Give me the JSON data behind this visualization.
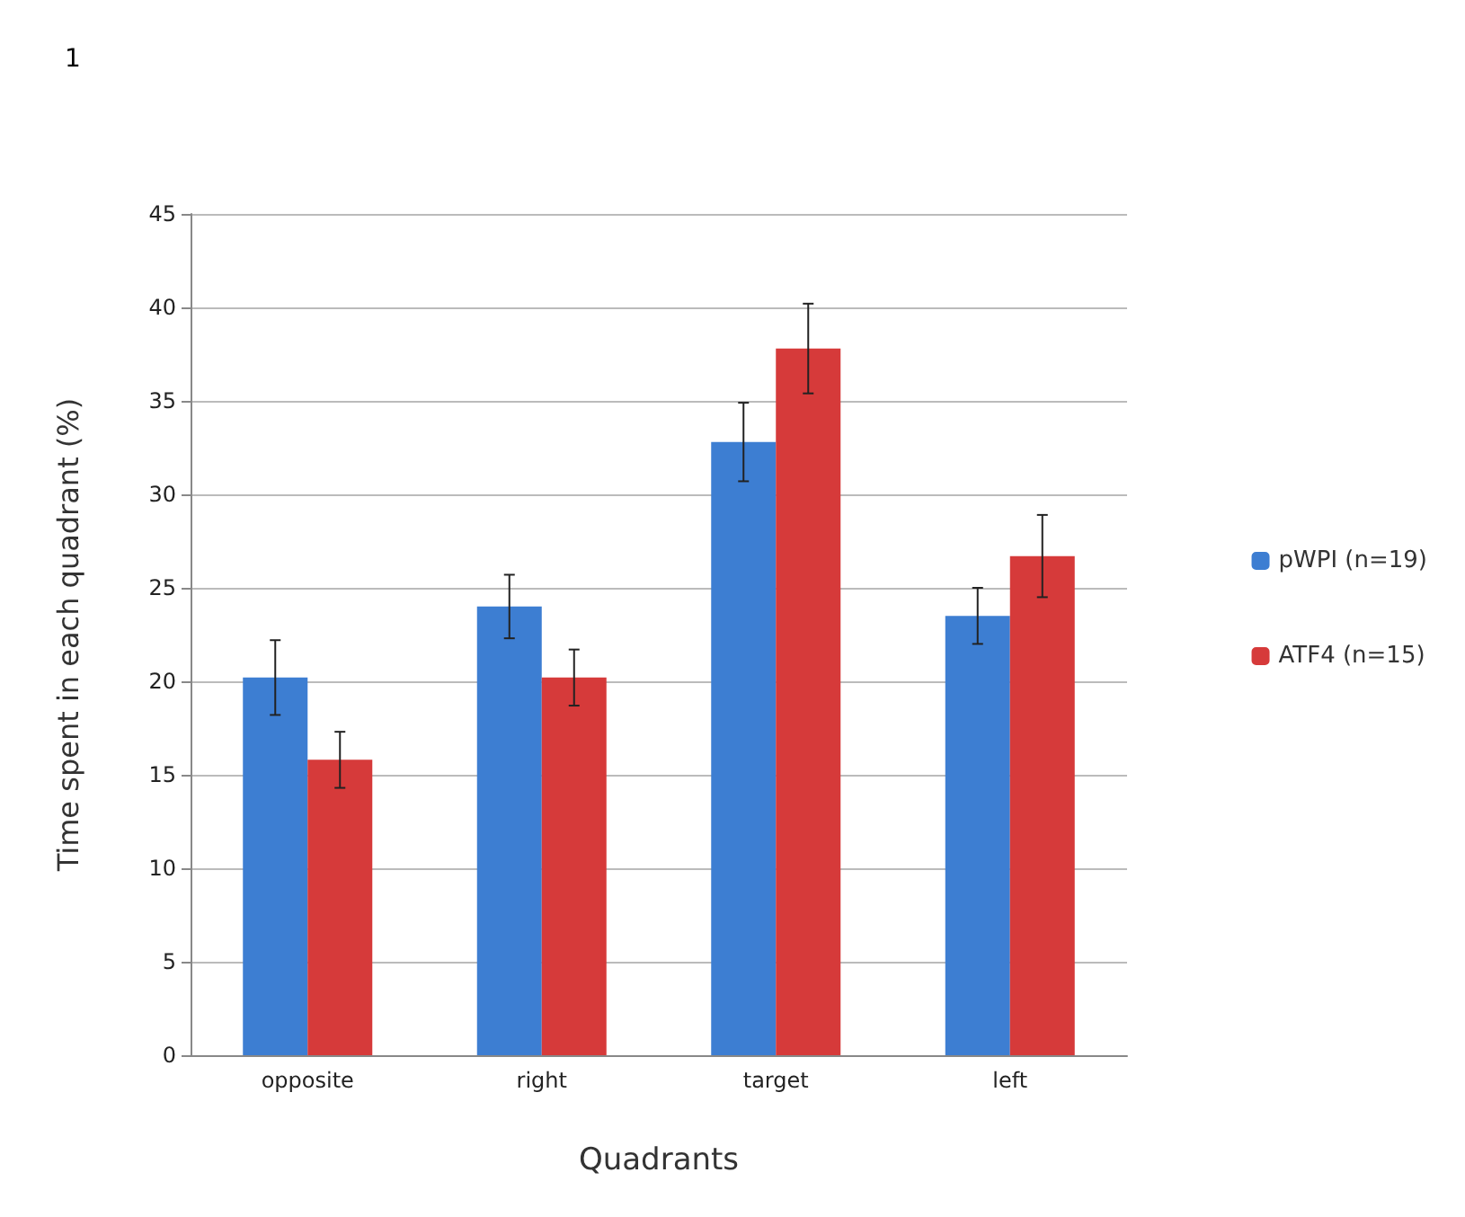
{
  "chart_data": {
    "type": "bar",
    "annotations": [
      "1"
    ],
    "xlabel": "Quadrants",
    "ylabel": "Time spent in each quadrant (%)",
    "categories": [
      "opposite",
      "right",
      "target",
      "left"
    ],
    "series": [
      {
        "name": "pWPI (n=19)",
        "color": "#3d7ed2",
        "values": [
          20.2,
          24.0,
          32.8,
          23.5
        ],
        "errors": [
          2.0,
          1.7,
          2.1,
          1.5
        ]
      },
      {
        "name": "ATF4 (n=15)",
        "color": "#d63a3a",
        "values": [
          15.8,
          20.2,
          37.8,
          26.7
        ],
        "errors": [
          1.5,
          1.5,
          2.4,
          2.2
        ]
      }
    ],
    "ylim": [
      0,
      45
    ],
    "yticks": [
      0,
      5,
      10,
      15,
      20,
      25,
      30,
      35,
      40,
      45
    ],
    "grid": "y",
    "legend": "right"
  }
}
